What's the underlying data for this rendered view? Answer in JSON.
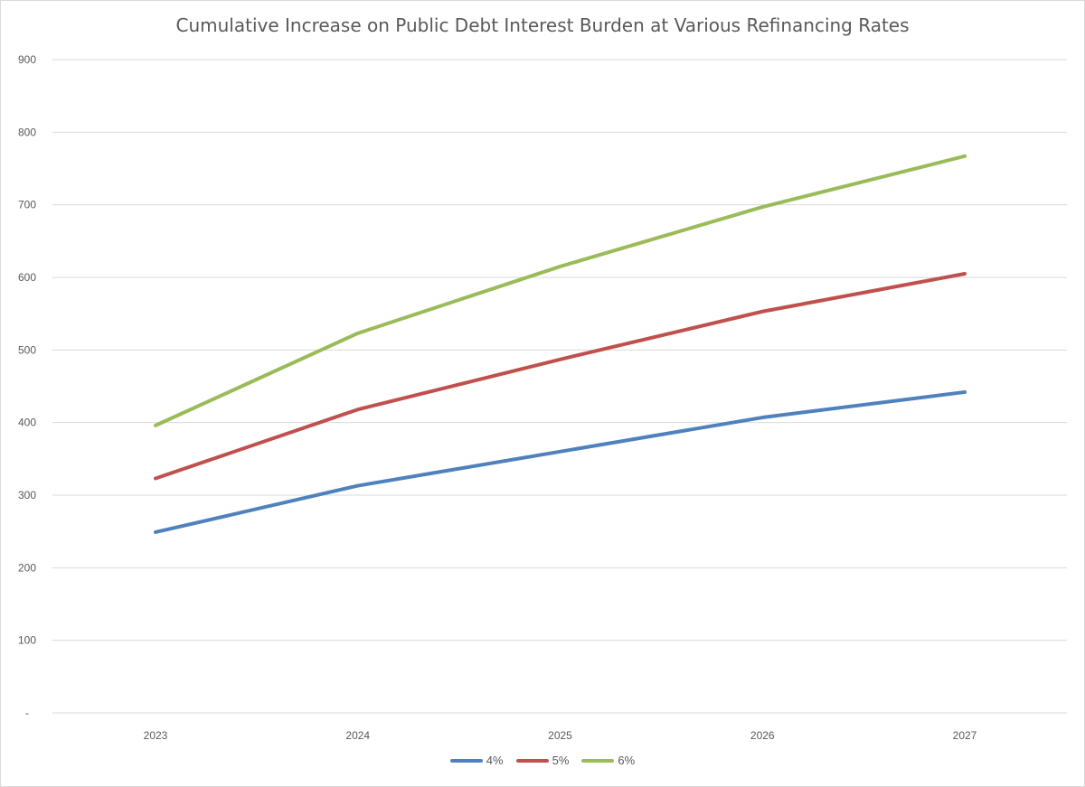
{
  "chart_data": {
    "type": "line",
    "title": "Cumulative Increase on Public Debt Interest Burden at Various Refinancing Rates",
    "xlabel": "",
    "ylabel": "",
    "categories": [
      "2023",
      "2024",
      "2025",
      "2026",
      "2027"
    ],
    "ylim": [
      0,
      900
    ],
    "yticks": [
      0,
      100,
      200,
      300,
      400,
      500,
      600,
      700,
      800,
      900
    ],
    "ytick_labels": [
      "-",
      "100",
      "200",
      "300",
      "400",
      "500",
      "600",
      "700",
      "800",
      "900"
    ],
    "grid": true,
    "legend_position": "bottom",
    "series": [
      {
        "name": "4%",
        "color": "#4f81bd",
        "values": [
          249,
          313,
          360,
          407,
          442
        ]
      },
      {
        "name": "5%",
        "color": "#c0504d",
        "values": [
          323,
          418,
          487,
          553,
          605
        ]
      },
      {
        "name": "6%",
        "color": "#9bbb59",
        "values": [
          396,
          523,
          615,
          697,
          767
        ]
      }
    ]
  }
}
